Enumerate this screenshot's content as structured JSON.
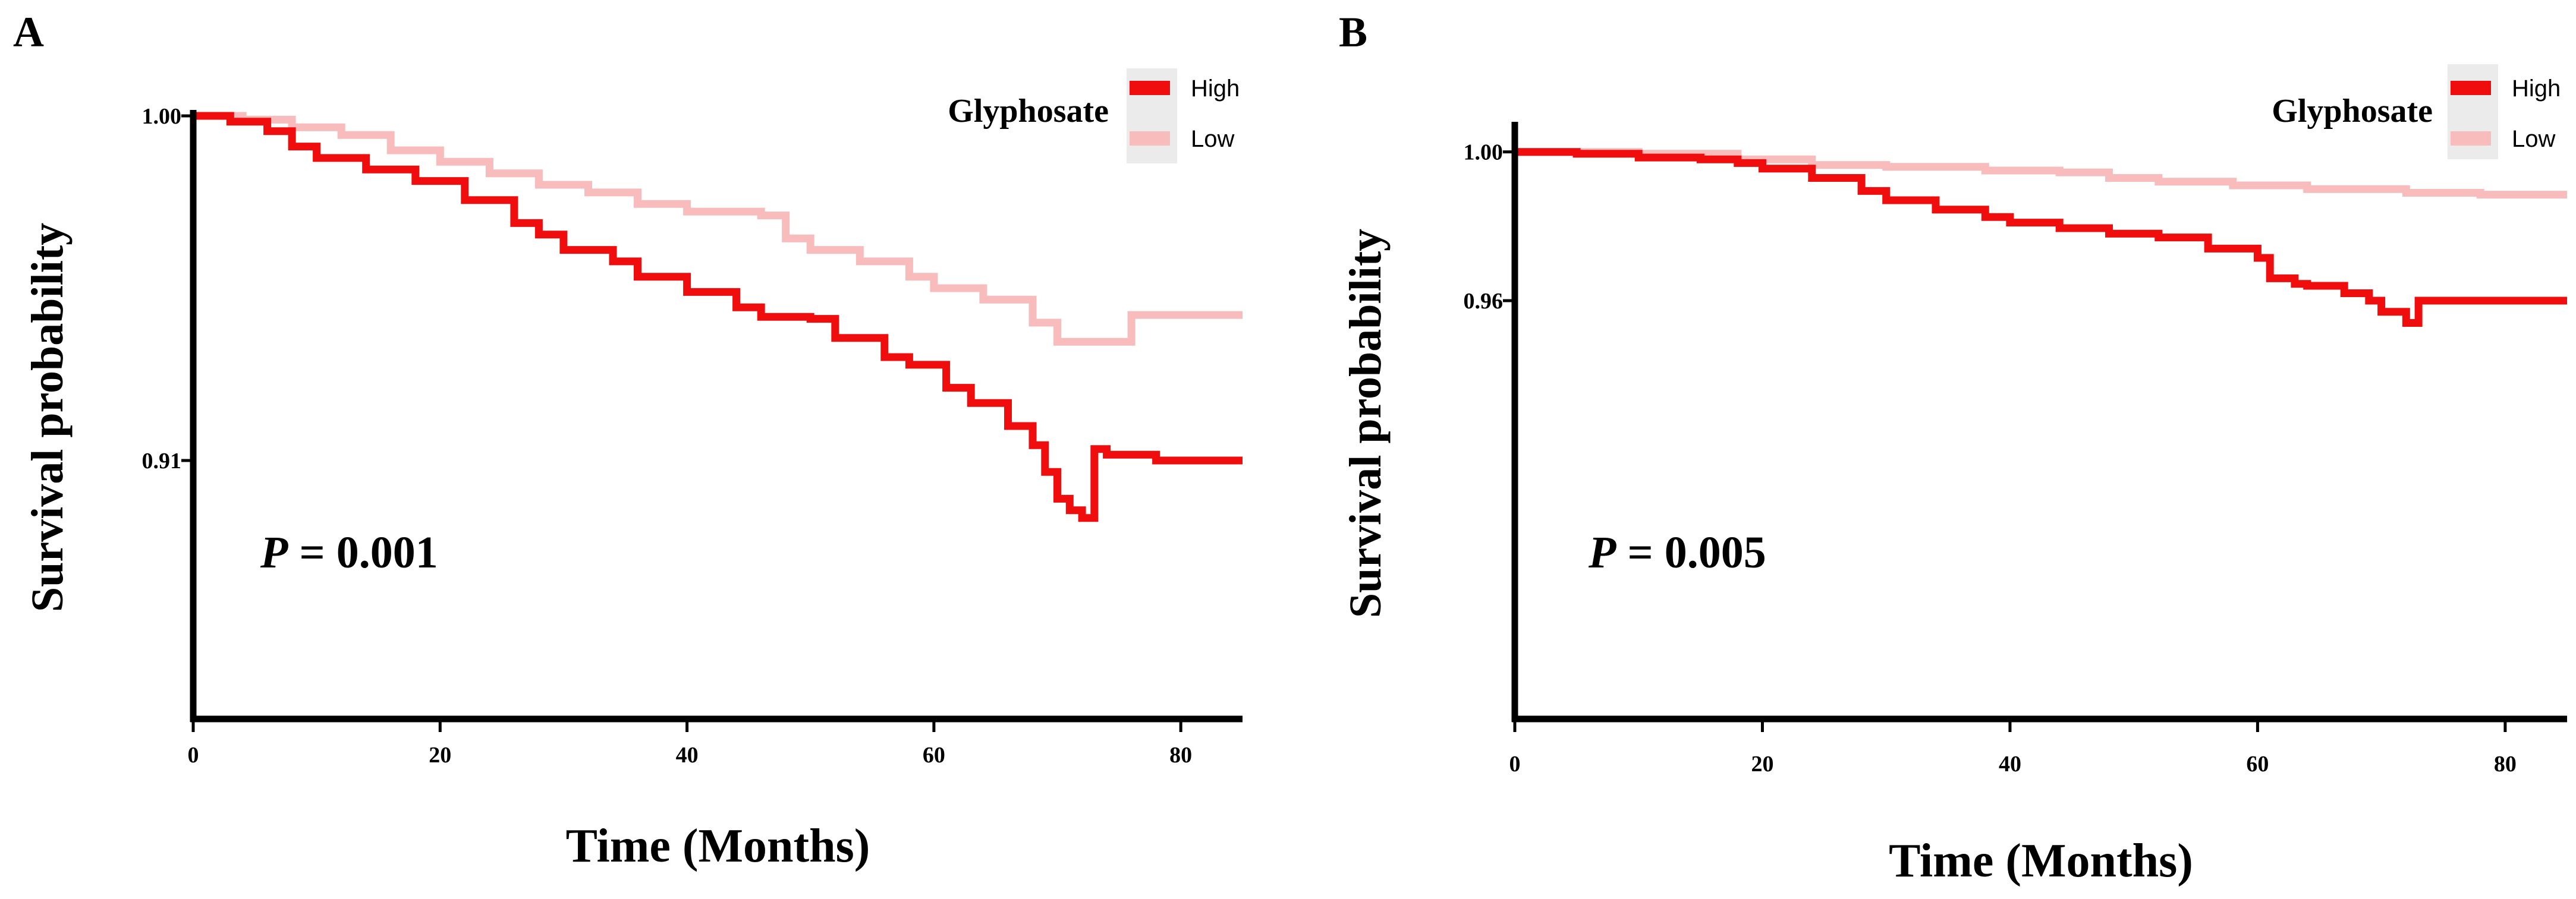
{
  "colors": {
    "high": "#f00d0d",
    "low": "#f8bcbc",
    "axis": "#000000",
    "legend_bg": "#ebebeb"
  },
  "chart_data": [
    {
      "panel_label": "A",
      "type": "line",
      "title": "",
      "xlabel": "Time (Months)",
      "ylabel": "Survival probability",
      "xlim": [
        0,
        85
      ],
      "ylim": [
        0.8425,
        1.0
      ],
      "xticks": [
        "0",
        "20",
        "40",
        "60",
        "80"
      ],
      "yticks": [
        "0.91",
        "1.00"
      ],
      "ytick_values": [
        0.91,
        1.0
      ],
      "legend": {
        "title": "Glyphosate",
        "entries": [
          "High",
          "Low"
        ],
        "position": "top-right"
      },
      "annotation": {
        "italic": "P",
        "text": " = 0.001"
      },
      "series": [
        {
          "name": "High",
          "x": [
            0,
            3,
            6,
            8,
            10,
            14,
            18,
            22,
            26,
            28,
            30,
            34,
            36,
            40,
            44,
            46,
            50,
            52,
            56,
            58,
            61,
            63,
            66,
            68,
            69,
            70,
            71,
            72,
            73,
            74,
            78,
            85
          ],
          "y": [
            1.0,
            0.9985,
            0.996,
            0.992,
            0.989,
            0.986,
            0.983,
            0.978,
            0.972,
            0.969,
            0.965,
            0.962,
            0.958,
            0.954,
            0.95,
            0.9475,
            0.947,
            0.942,
            0.937,
            0.935,
            0.929,
            0.925,
            0.919,
            0.914,
            0.907,
            0.9,
            0.897,
            0.895,
            0.913,
            0.9115,
            0.91,
            0.91
          ]
        },
        {
          "name": "Low",
          "x": [
            0,
            4,
            8,
            12,
            16,
            20,
            24,
            28,
            32,
            36,
            40,
            46,
            48,
            50,
            54,
            58,
            60,
            64,
            68,
            70,
            76,
            85
          ],
          "y": [
            1.0,
            0.999,
            0.997,
            0.995,
            0.991,
            0.988,
            0.985,
            0.982,
            0.98,
            0.977,
            0.975,
            0.974,
            0.968,
            0.965,
            0.962,
            0.958,
            0.955,
            0.952,
            0.946,
            0.941,
            0.948,
            0.948
          ]
        }
      ]
    },
    {
      "panel_label": "B",
      "type": "line",
      "title": "",
      "xlabel": "Time (Months)",
      "ylabel": "Survival probability",
      "xlim": [
        0,
        85
      ],
      "ylim": [
        0.8475,
        1.0065
      ],
      "xticks": [
        "0",
        "20",
        "40",
        "60",
        "80"
      ],
      "yticks": [
        "0.96",
        "1.00"
      ],
      "ytick_values": [
        0.96,
        1.0
      ],
      "legend": {
        "title": "Glyphosate",
        "entries": [
          "High",
          "Low"
        ],
        "position": "top-right"
      },
      "annotation": {
        "italic": "P",
        "text": " = 0.005"
      },
      "series": [
        {
          "name": "High",
          "x": [
            0,
            5,
            10,
            15,
            18,
            20,
            24,
            28,
            30,
            34,
            38,
            40,
            44,
            48,
            52,
            56,
            60,
            61,
            63,
            64,
            67,
            69,
            70,
            72,
            73,
            85
          ],
          "y": [
            1.0,
            0.9995,
            0.9985,
            0.998,
            0.997,
            0.9955,
            0.993,
            0.9895,
            0.987,
            0.9845,
            0.9825,
            0.981,
            0.9795,
            0.978,
            0.977,
            0.974,
            0.9715,
            0.966,
            0.9645,
            0.964,
            0.962,
            0.96,
            0.957,
            0.954,
            0.96,
            0.96
          ]
        },
        {
          "name": "Low",
          "x": [
            0,
            10,
            18,
            24,
            30,
            38,
            44,
            48,
            52,
            58,
            64,
            66,
            72,
            78,
            85
          ],
          "y": [
            1.0,
            0.9995,
            0.998,
            0.9965,
            0.996,
            0.995,
            0.9945,
            0.993,
            0.992,
            0.991,
            0.99,
            0.99,
            0.989,
            0.9885,
            0.9885
          ]
        }
      ]
    }
  ]
}
